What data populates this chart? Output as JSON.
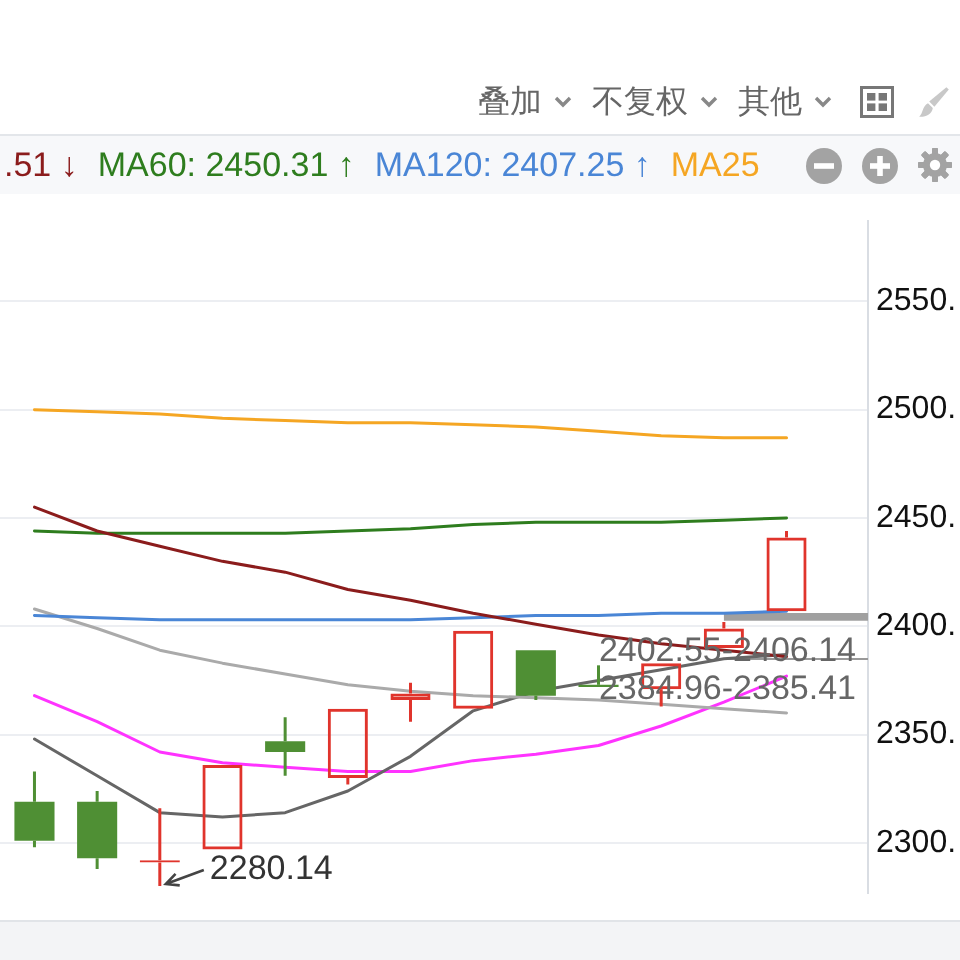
{
  "chart_data": {
    "type": "candlestick",
    "categories": [
      null,
      null,
      null,
      null,
      null,
      null,
      null,
      null,
      null,
      null,
      null,
      null,
      null
    ],
    "ohlc": [
      [
        2319,
        2333,
        2298,
        2301
      ],
      [
        2319,
        2324,
        2288,
        2293
      ],
      [
        2291,
        2316,
        2280.14,
        2292
      ],
      [
        2297,
        2336,
        2297,
        2336
      ],
      [
        2347,
        2358,
        2331,
        2342
      ],
      [
        2330,
        2362,
        2327,
        2362
      ],
      [
        2366,
        2374,
        2356,
        2369
      ],
      [
        2362,
        2398,
        2362,
        2398
      ],
      [
        2389,
        2389,
        2366,
        2368
      ],
      [
        2373,
        2382,
        2372,
        2372
      ],
      [
        2371,
        2383,
        2363,
        2383
      ],
      [
        2390,
        2402,
        2390,
        2399
      ],
      [
        2407,
        2444,
        2407,
        2441
      ]
    ],
    "colors": [
      "#4f8f34",
      "#4f8f34",
      "#e0342c",
      "#e0342c",
      "#4f8f34",
      "#e0342c",
      "#e0342c",
      "#e0342c",
      "#4f8f34",
      "#4f8f34",
      "#e0342c",
      "#e0342c",
      "#e0342c"
    ],
    "series": [
      {
        "name": ".51 ↓",
        "type": "line",
        "color": "#8b1c1c",
        "values": [
          2455,
          2444,
          2437,
          2430,
          2425,
          2417,
          2412,
          2406,
          2401,
          2396,
          2392,
          2389,
          2386
        ]
      },
      {
        "name": "MA60: 2450.31 ↑",
        "type": "line",
        "color": "#2e7d1e",
        "values": [
          2444,
          2443,
          2443,
          2443,
          2443,
          2444,
          2445,
          2447,
          2448,
          2448,
          2448,
          2449,
          2450
        ]
      },
      {
        "name": "MA120: 2407.25 ↑",
        "type": "line",
        "color": "#4a86d6",
        "values": [
          2405,
          2404,
          2403,
          2403,
          2403,
          2403,
          2403,
          2404,
          2405,
          2405,
          2406,
          2406,
          2407
        ]
      },
      {
        "name": "MA25",
        "type": "line",
        "color": "#f5a623",
        "values": [
          2500,
          2499,
          2498,
          2496,
          2495,
          2494,
          2494,
          2493,
          2492,
          2490,
          2488,
          2487,
          2487
        ]
      },
      {
        "type": "line",
        "color": "#aaaaaa",
        "values": [
          2408,
          2399,
          2389,
          2383,
          2378,
          2373,
          2370,
          2368,
          2367,
          2366,
          2364,
          2362,
          2360
        ]
      },
      {
        "type": "line",
        "color": "#666666",
        "values": [
          2348,
          2331,
          2314,
          2312,
          2314,
          2324,
          2340,
          2361,
          2370,
          2375,
          2380,
          2385,
          2387
        ]
      },
      {
        "type": "line",
        "color": "#ff33ff",
        "values": [
          2368,
          2356,
          2342,
          2337,
          2335,
          2333,
          2333,
          2338,
          2341,
          2345,
          2354,
          2365,
          2377
        ]
      }
    ],
    "ylim": [
      2277,
      2587
    ],
    "yticks": [
      {
        "value": 2300,
        "label": "2300."
      },
      {
        "value": 2350,
        "label": "2350."
      },
      {
        "value": 2400,
        "label": "2400."
      },
      {
        "value": 2450,
        "label": "2450."
      },
      {
        "value": 2500,
        "label": "2500."
      },
      {
        "value": 2550,
        "label": "2550."
      }
    ],
    "grid": "y",
    "tick_labels": "y",
    "legend": "top left",
    "marker": "none",
    "bands": [
      {
        "axis": "y",
        "from": 2402.55,
        "to": 2406.14,
        "label": "2402.55-2406.14",
        "color": "#a0a0a0"
      },
      {
        "axis": "y",
        "from": 2384.96,
        "to": 2385.41,
        "label": "2384.96-2385.41",
        "color": "#999999"
      }
    ],
    "annotations": [
      "叠加",
      "不复权",
      "其他",
      "2280.14"
    ]
  }
}
